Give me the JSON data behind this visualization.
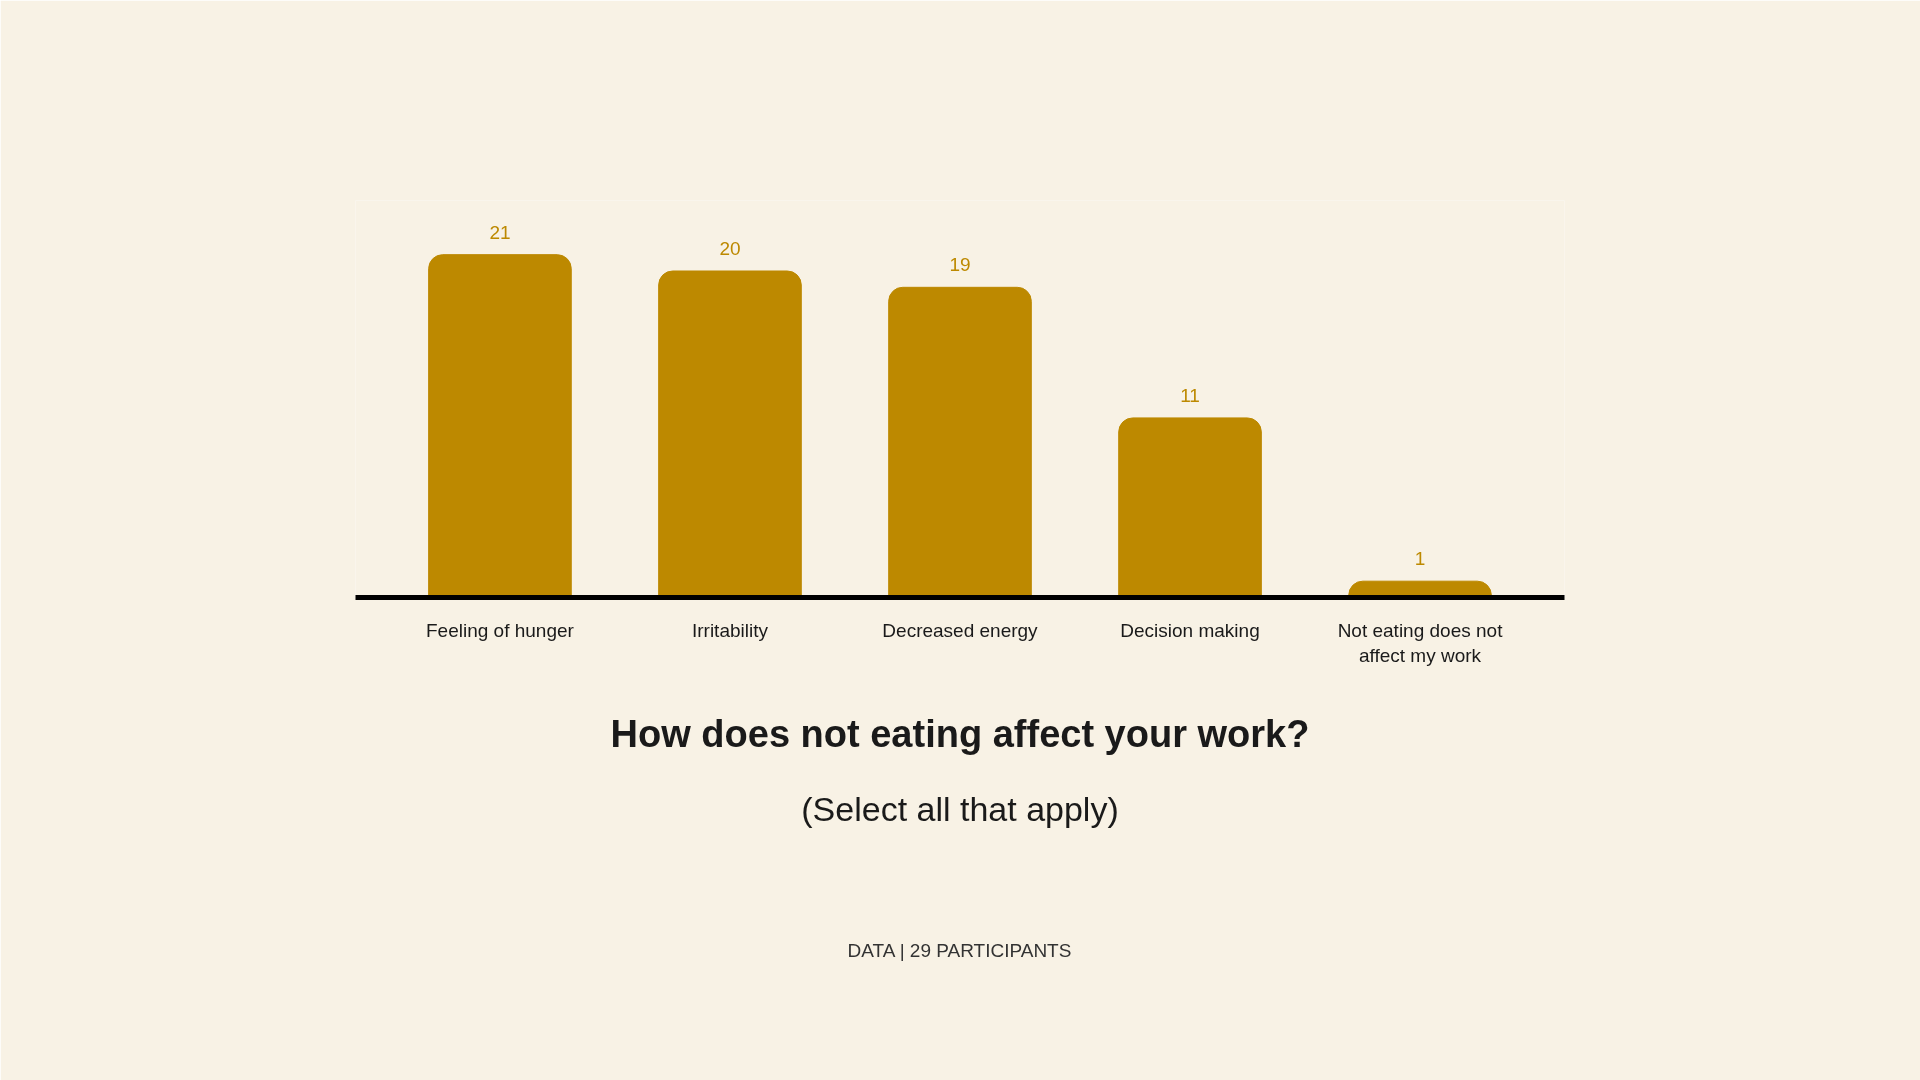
{
  "chart_data": {
    "type": "bar",
    "title": "How does not eating affect your work?",
    "subtitle": "(Select all that apply)",
    "categories": [
      "Feeling of hunger",
      "Irritability",
      "Decreased energy",
      "Decision making",
      "Not eating does not affect my work"
    ],
    "values": [
      21,
      20,
      19,
      11,
      1
    ],
    "color": "#bd8900",
    "data_labels": true,
    "annotations": [
      "DATA | 29 PARTICIPANTS"
    ]
  }
}
